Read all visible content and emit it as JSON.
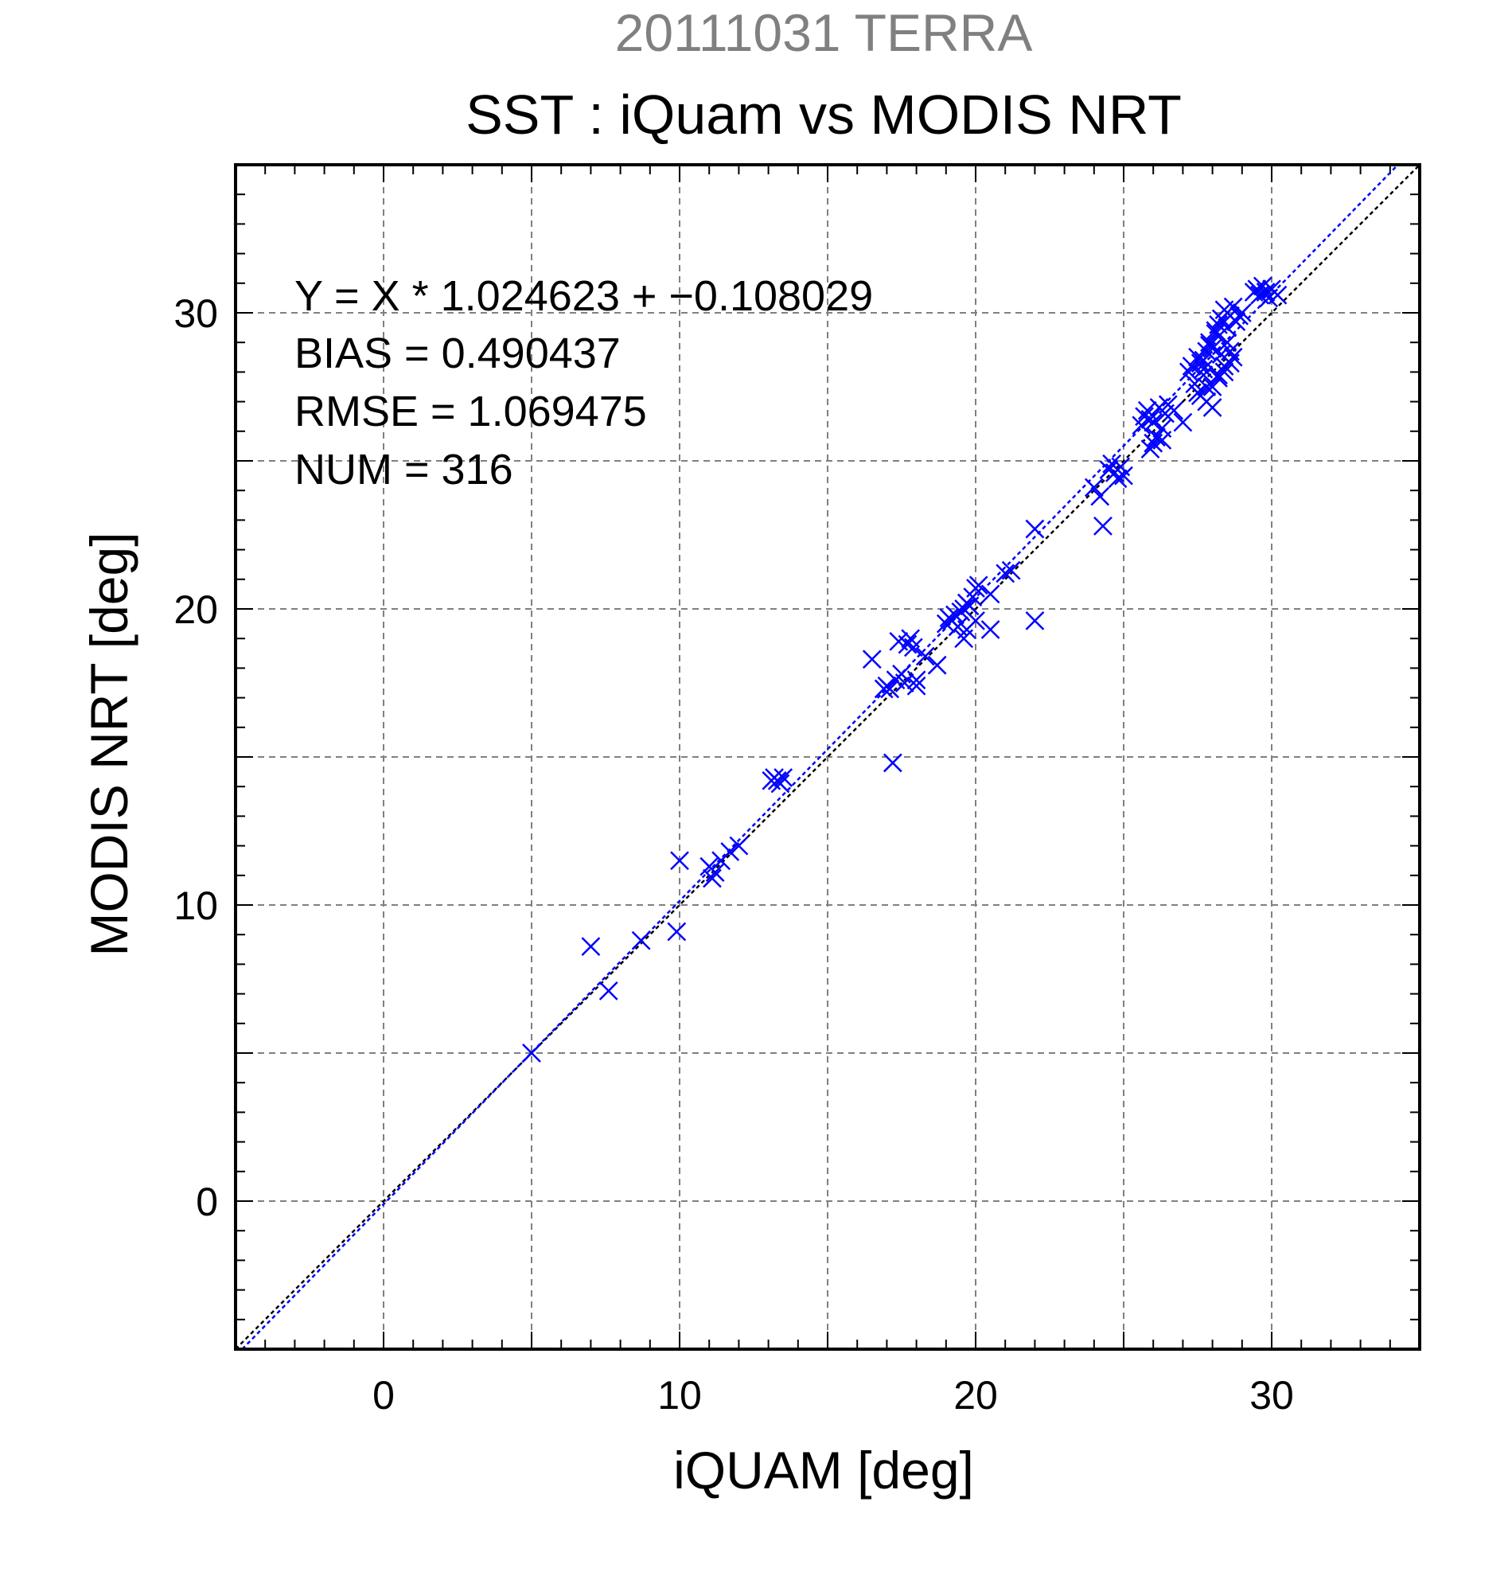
{
  "chart_data": {
    "type": "scatter",
    "supertitle": "20111031 TERRA",
    "title": "SST : iQuam vs MODIS NRT",
    "xlabel": "iQUAM [deg]",
    "ylabel": "MODIS NRT [deg]",
    "xlim": [
      -5,
      35
    ],
    "ylim": [
      -5,
      35
    ],
    "xticks": [
      0,
      10,
      20,
      30
    ],
    "yticks": [
      0,
      10,
      20,
      30
    ],
    "xtick_labels": [
      "0",
      "10",
      "20",
      "30"
    ],
    "ytick_labels": [
      "0",
      "10",
      "20",
      "30"
    ],
    "grid": true,
    "marker": "x",
    "stats": {
      "equation": "Y = X * 1.024623 + −0.108029",
      "bias": "BIAS = 0.490437",
      "rmse": "RMSE = 1.069475",
      "num": "NUM = 316"
    },
    "fit": {
      "slope": 1.024623,
      "intercept": -0.108029,
      "color": "#0000ff"
    },
    "identity_line_color": "#000000",
    "series": [
      {
        "color": "#0000ff",
        "x": [
          5.0,
          7.0,
          7.6,
          8.7,
          9.9,
          10.0,
          11.0,
          11.1,
          11.2,
          11.4,
          11.7,
          12.0,
          13.1,
          13.2,
          13.3,
          13.4,
          13.5,
          16.5,
          16.9,
          17.0,
          17.1,
          17.2,
          17.3,
          17.4,
          17.5,
          17.6,
          17.7,
          17.8,
          17.9,
          18.0,
          18.0,
          18.3,
          18.7,
          19.0,
          19.1,
          19.2,
          19.3,
          19.4,
          19.5,
          19.6,
          19.7,
          19.8,
          19.9,
          20.0,
          20.1,
          19.7,
          19.6,
          20.0,
          20.5,
          20.5,
          21.0,
          21.2,
          22.0,
          22.0,
          24.0,
          24.2,
          24.3,
          24.5,
          24.6,
          24.7,
          24.8,
          24.9,
          25.0,
          25.6,
          25.7,
          25.8,
          25.9,
          26.0,
          26.1,
          26.2,
          26.3,
          26.4,
          26.5,
          26.0,
          25.9,
          26.3,
          26.7,
          27.0,
          27.2,
          27.3,
          27.4,
          27.5,
          27.6,
          27.7,
          27.8,
          27.9,
          28.0,
          28.1,
          28.2,
          28.3,
          28.4,
          28.5,
          28.6,
          28.7,
          28.8,
          28.9,
          29.0,
          27.6,
          27.8,
          28.0,
          28.2,
          28.4,
          28.6,
          27.7,
          27.9,
          28.1,
          28.3,
          28.5,
          28.7,
          28.2,
          28.4,
          28.6,
          28.0,
          27.8,
          27.5,
          27.7,
          29.4,
          29.5,
          29.6,
          29.7,
          29.8,
          29.9,
          30.0,
          30.2
        ],
        "y": [
          5.0,
          8.6,
          7.1,
          8.8,
          9.1,
          11.5,
          11.3,
          10.9,
          11.1,
          11.5,
          11.8,
          12.0,
          14.2,
          14.3,
          14.2,
          14.1,
          14.3,
          18.3,
          17.3,
          17.4,
          17.3,
          14.8,
          17.6,
          18.9,
          17.8,
          17.5,
          18.8,
          19.0,
          18.7,
          17.6,
          17.4,
          18.4,
          18.1,
          19.5,
          19.7,
          19.6,
          19.8,
          19.4,
          19.9,
          20.0,
          20.2,
          20.1,
          20.4,
          20.7,
          20.8,
          19.3,
          19.0,
          19.6,
          19.3,
          20.5,
          21.2,
          21.3,
          22.7,
          19.6,
          24.1,
          23.8,
          22.8,
          24.7,
          24.9,
          24.6,
          24.4,
          24.8,
          24.5,
          26.2,
          26.5,
          26.7,
          26.4,
          26.3,
          25.8,
          26.8,
          26.1,
          26.6,
          26.9,
          25.6,
          25.4,
          25.7,
          26.7,
          26.3,
          28.0,
          28.2,
          27.6,
          28.5,
          28.3,
          27.9,
          28.7,
          29.0,
          28.8,
          29.3,
          29.6,
          29.8,
          30.1,
          29.5,
          29.9,
          30.2,
          29.7,
          29.9,
          30.0,
          27.2,
          27.0,
          27.5,
          27.8,
          28.0,
          28.3,
          28.1,
          28.9,
          29.4,
          28.6,
          29.0,
          28.5,
          27.9,
          28.2,
          28.7,
          26.8,
          27.5,
          27.3,
          28.4,
          30.7,
          30.8,
          30.6,
          30.9,
          30.7,
          30.5,
          30.8,
          30.6
        ]
      }
    ]
  }
}
